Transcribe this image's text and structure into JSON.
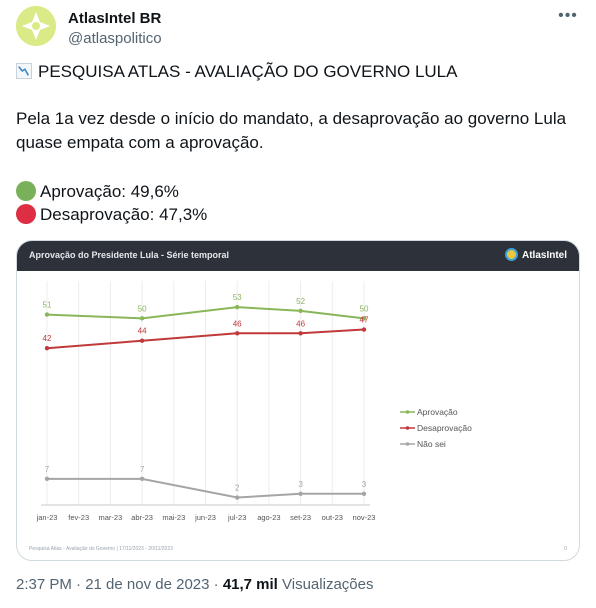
{
  "author": {
    "name": "AtlasIntel BR",
    "handle": "@atlaspolitico",
    "avatar_icon": "atlasintel-logo-icon"
  },
  "more_icon": "more-horizontal-icon",
  "tweet": {
    "headline": "PESQUISA ATLAS - AVALIAÇÃO DO GOVERNO LULA",
    "headline_icon": "chart-decreasing-icon",
    "body_line1": "Pela 1a vez desde o início do mandato, a desaprovação ao governo Lula",
    "body_line2": "quase empata com a aprovação.",
    "approval": "Aprovação: 49,6%",
    "disapproval": "Desaprovação: 47,3%",
    "approval_dot_color": "#78b159",
    "disapproval_dot_color": "#dd2e44"
  },
  "card": {
    "title": "Aprovação do Presidente Lula - Série temporal",
    "brand": "AtlasIntel",
    "footer_note": "Pesquisa Atlas - Avaliação do Governo | 17/11/2023 - 20/11/2023",
    "footer_page": "0"
  },
  "chart_data": {
    "type": "line",
    "categories": [
      "jan-23",
      "fev-23",
      "mar-23",
      "abr-23",
      "mai-23",
      "jun-23",
      "jul-23",
      "ago-23",
      "set-23",
      "out-23",
      "nov-23"
    ],
    "series": [
      {
        "name": "Aprovação",
        "color": "#8ab65a",
        "values": [
          51,
          null,
          null,
          50,
          null,
          null,
          53,
          null,
          52,
          null,
          50
        ]
      },
      {
        "name": "Desaprovação",
        "color": "#c0393b",
        "values": [
          42,
          null,
          null,
          44,
          null,
          null,
          46,
          null,
          46,
          null,
          47
        ]
      },
      {
        "name": "Não sei",
        "color": "#a5a5a5",
        "values": [
          7,
          null,
          null,
          7,
          null,
          null,
          2,
          null,
          3,
          null,
          3
        ]
      }
    ],
    "ylim": [
      0,
      60
    ],
    "grid": "vertical",
    "legend": "right"
  },
  "meta": {
    "time": "2:37 PM · 21 de nov de 2023 · ",
    "views_count": "41,7 mil",
    "views_label": " Visualizações"
  }
}
